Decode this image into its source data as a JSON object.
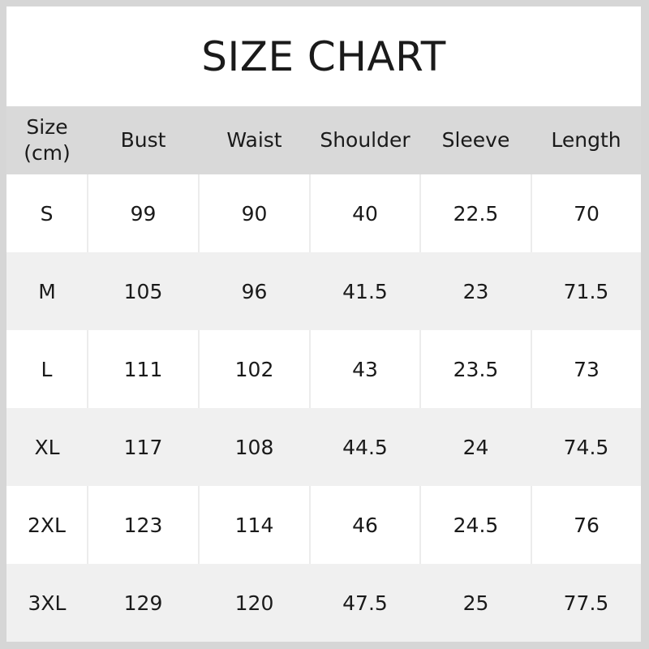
{
  "title": "SIZE CHART",
  "columns": [
    "Size\n(cm)",
    "Bust",
    "Waist",
    "Shoulder",
    "Sleeve",
    "Length"
  ],
  "column_size_line1": "Size",
  "column_size_line2": "(cm)",
  "rows": [
    [
      "S",
      "99",
      "90",
      "40",
      "22.5",
      "70"
    ],
    [
      "M",
      "105",
      "96",
      "41.5",
      "23",
      "71.5"
    ],
    [
      "L",
      "111",
      "102",
      "43",
      "23.5",
      "73"
    ],
    [
      "XL",
      "117",
      "108",
      "44.5",
      "24",
      "74.5"
    ],
    [
      "2XL",
      "123",
      "114",
      "46",
      "24.5",
      "76"
    ],
    [
      "3XL",
      "129",
      "120",
      "47.5",
      "25",
      "77.5"
    ]
  ],
  "colors": {
    "header_bg": "#d9d9d9",
    "alt_row_bg": "#f0f0f0",
    "frame": "#d6d6d6"
  }
}
